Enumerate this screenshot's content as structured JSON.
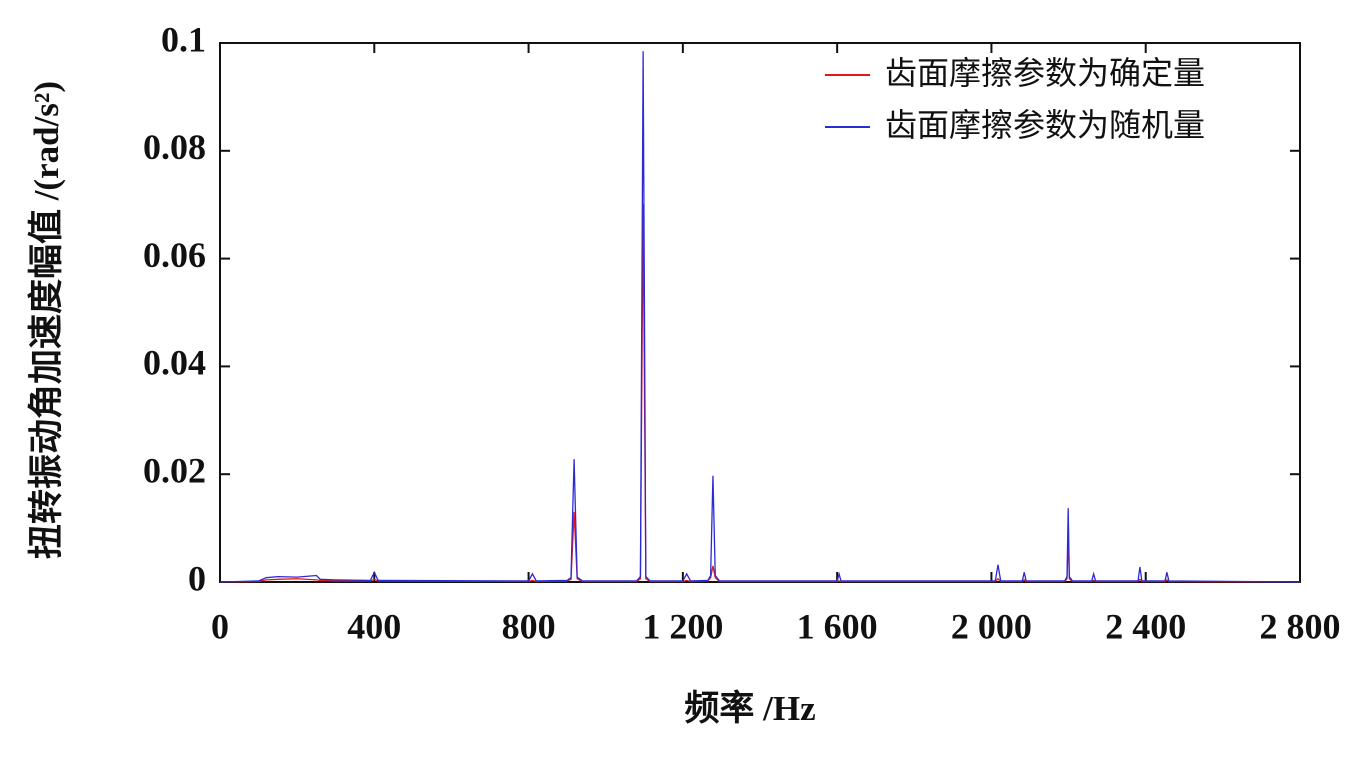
{
  "chart_data": {
    "type": "line",
    "xlabel": "频率 /Hz",
    "ylabel": "扭转振动角加速度幅值 /(rad/s²)",
    "x": [
      0,
      100,
      120,
      150,
      200,
      250,
      260,
      300,
      390,
      400,
      410,
      800,
      810,
      820,
      900,
      910,
      918,
      926,
      940,
      1080,
      1090,
      1097,
      1104,
      1115,
      1200,
      1210,
      1220,
      1265,
      1272,
      1278,
      1284,
      1295,
      1600,
      1605,
      1610,
      2010,
      2017,
      2024,
      2080,
      2085,
      2090,
      2190,
      2196,
      2199,
      2202,
      2210,
      2260,
      2265,
      2270,
      2380,
      2385,
      2390,
      2450,
      2455,
      2460,
      2800
    ],
    "series": [
      {
        "name": "齿面摩擦参数为确定量",
        "color": "#e8141b",
        "values": [
          0,
          0.0001,
          0.0004,
          0.0005,
          0.0006,
          0.0004,
          0.0003,
          0.0002,
          0.0002,
          0.0005,
          0.0002,
          0.0001,
          0.0003,
          0.0001,
          0.0002,
          0.0005,
          0.013,
          0.0006,
          0.0001,
          0.0001,
          0.0006,
          0.0701,
          0.0006,
          0.0001,
          0.0001,
          0.0003,
          0.0001,
          0.0002,
          0.0008,
          0.003,
          0.0008,
          0.0001,
          0.0001,
          0.0002,
          0.0001,
          0.0001,
          0.0006,
          0.0001,
          0.0001,
          0.0004,
          0.0001,
          0.0001,
          0.0006,
          0.0087,
          0.0006,
          0.0001,
          0.0001,
          0.0003,
          0.0001,
          0.0001,
          0.0005,
          0.0001,
          0.0001,
          0.0004,
          0.0001,
          0
        ]
      },
      {
        "name": "齿面摩擦参数为随机量",
        "color": "#2b2bd6",
        "values": [
          0,
          0.0002,
          0.0008,
          0.001,
          0.0009,
          0.0012,
          0.0005,
          0.0004,
          0.0003,
          0.0018,
          0.0003,
          0.0002,
          0.0015,
          0.0002,
          0.0003,
          0.0008,
          0.0228,
          0.0009,
          0.0002,
          0.0002,
          0.001,
          0.0985,
          0.001,
          0.0002,
          0.0002,
          0.0015,
          0.0002,
          0.0003,
          0.0012,
          0.0197,
          0.0012,
          0.0002,
          0.0002,
          0.0015,
          0.0002,
          0.0002,
          0.0032,
          0.0002,
          0.0002,
          0.0018,
          0.0002,
          0.0002,
          0.001,
          0.0137,
          0.001,
          0.0002,
          0.0002,
          0.0015,
          0.0002,
          0.0002,
          0.0028,
          0.0002,
          0.0002,
          0.0018,
          0.0002,
          0
        ]
      }
    ],
    "xlim": [
      0,
      2800
    ],
    "xticks": [
      0,
      400,
      800,
      {
        "value": 1200,
        "label": "1 200"
      },
      {
        "value": 1600,
        "label": "1 600"
      },
      {
        "value": 2000,
        "label": "2 000"
      },
      {
        "value": 2400,
        "label": "2 400"
      },
      {
        "value": 2800,
        "label": "2 800"
      }
    ],
    "ylim": [
      0,
      0.1
    ],
    "yticks": [
      0,
      0.02,
      0.04,
      0.06,
      0.08,
      0.1
    ],
    "grid": false,
    "legend": "upper-right"
  }
}
